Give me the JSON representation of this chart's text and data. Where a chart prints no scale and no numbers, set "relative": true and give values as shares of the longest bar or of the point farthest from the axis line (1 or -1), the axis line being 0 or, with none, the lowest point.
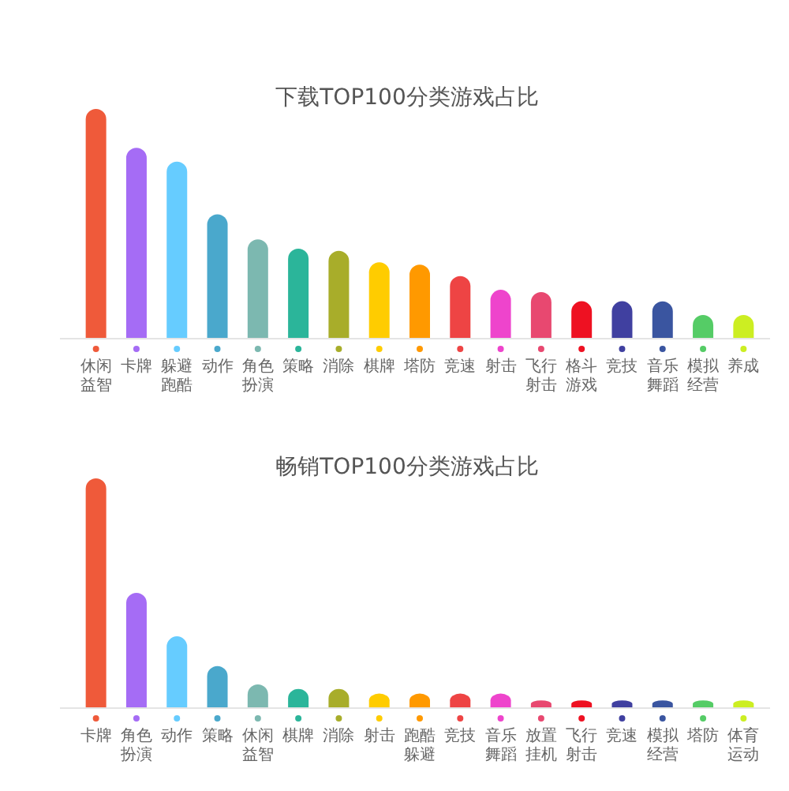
{
  "chart_data": [
    {
      "type": "bar",
      "title": "下载TOP100分类游戏占比",
      "relative": true,
      "categories": [
        "休闲益智",
        "卡牌",
        "躲避跑酷",
        "动作",
        "角色扮演",
        "策略",
        "消除",
        "棋牌",
        "塔防",
        "竞速",
        "射击",
        "飞行射击",
        "格斗游戏",
        "竞技",
        "音乐舞蹈",
        "模拟经营",
        "养成"
      ],
      "values": [
        1,
        0.83,
        0.77,
        0.54,
        0.43,
        0.39,
        0.38,
        0.33,
        0.32,
        0.27,
        0.21,
        0.2,
        0.16,
        0.16,
        0.16,
        0.1,
        0.1
      ],
      "colors": [
        "#ef5a3a",
        "#a56cf5",
        "#66ccff",
        "#4aa8cc",
        "#7cb8b0",
        "#2bb59a",
        "#a8ad2a",
        "#ffcc00",
        "#ff9900",
        "#ee4444",
        "#ee44cc",
        "#e84870",
        "#ee1122",
        "#4040a0",
        "#3a55a0",
        "#55cc66",
        "#ccee22"
      ]
    },
    {
      "type": "bar",
      "title": "畅销TOP100分类游戏占比",
      "relative": true,
      "categories": [
        "卡牌",
        "角色扮演",
        "动作",
        "策略",
        "休闲益智",
        "棋牌",
        "消除",
        "射击",
        "跑酷躲避",
        "竞技",
        "音乐舞蹈",
        "放置挂机",
        "飞行射击",
        "竞速",
        "模拟经营",
        "塔防",
        "体育运动"
      ],
      "values": [
        1,
        0.5,
        0.31,
        0.18,
        0.1,
        0.08,
        0.08,
        0.06,
        0.06,
        0.06,
        0.06,
        0.03,
        0.03,
        0.03,
        0.03,
        0.03,
        0.03
      ],
      "colors": [
        "#ef5a3a",
        "#a56cf5",
        "#66ccff",
        "#4aa8cc",
        "#7cb8b0",
        "#2bb59a",
        "#a8ad2a",
        "#ffcc00",
        "#ff9900",
        "#ee4444",
        "#ee44cc",
        "#e84870",
        "#ee1122",
        "#4040a0",
        "#3a55a0",
        "#55cc66",
        "#ccee22"
      ]
    }
  ]
}
